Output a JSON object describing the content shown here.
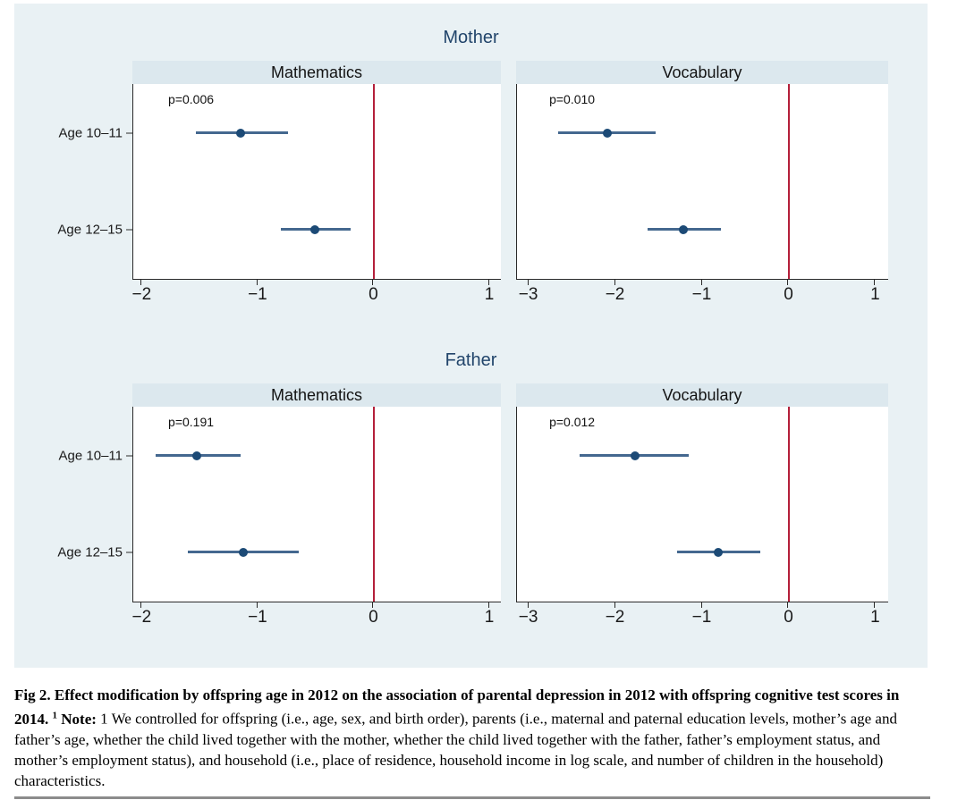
{
  "chart_data": {
    "type": "scatter",
    "subtype": "dot-and-whisker coefficient plot, 2x2 small multiples",
    "grid": false,
    "legend": "none",
    "row_labels": [
      "Age 10–11",
      "Age 12–15"
    ],
    "row_positions_pct": [
      25.2,
      74.8
    ],
    "groups": [
      {
        "title": "Mother",
        "panels": [
          {
            "title": "Mathematics",
            "p_label": "p=0.006",
            "xlim": [
              -2.08,
              1.1
            ],
            "ticks": [
              -2,
              -1,
              0,
              1
            ],
            "tick_labels": [
              "−2",
              "−1",
              "0",
              "1"
            ],
            "reference_line_x": 0,
            "rows": [
              {
                "label": "Age 10–11",
                "estimate": -1.15,
                "ci_low": -1.54,
                "ci_high": -0.74
              },
              {
                "label": "Age 12–15",
                "estimate": -0.51,
                "ci_low": -0.8,
                "ci_high": -0.2
              }
            ]
          },
          {
            "title": "Vocabulary",
            "p_label": "p=0.010",
            "xlim": [
              -3.14,
              1.15
            ],
            "ticks": [
              -3,
              -2,
              -1,
              0,
              1
            ],
            "tick_labels": [
              "−3",
              "−2",
              "−1",
              "0",
              "1"
            ],
            "reference_line_x": 0,
            "rows": [
              {
                "label": "Age 10–11",
                "estimate": -2.1,
                "ci_low": -2.66,
                "ci_high": -1.54
              },
              {
                "label": "Age 12–15",
                "estimate": -1.22,
                "ci_low": -1.63,
                "ci_high": -0.78
              }
            ]
          }
        ]
      },
      {
        "title": "Father",
        "panels": [
          {
            "title": "Mathematics",
            "p_label": "p=0.191",
            "xlim": [
              -2.08,
              1.1
            ],
            "ticks": [
              -2,
              -1,
              0,
              1
            ],
            "tick_labels": [
              "−2",
              "−1",
              "0",
              "1"
            ],
            "reference_line_x": 0,
            "rows": [
              {
                "label": "Age 10–11",
                "estimate": -1.53,
                "ci_low": -1.89,
                "ci_high": -1.15
              },
              {
                "label": "Age 12–15",
                "estimate": -1.13,
                "ci_low": -1.61,
                "ci_high": -0.65
              }
            ]
          },
          {
            "title": "Vocabulary",
            "p_label": "p=0.012",
            "xlim": [
              -3.14,
              1.15
            ],
            "ticks": [
              -3,
              -2,
              -1,
              0,
              1
            ],
            "tick_labels": [
              "−3",
              "−2",
              "−1",
              "0",
              "1"
            ],
            "reference_line_x": 0,
            "rows": [
              {
                "label": "Age 10–11",
                "estimate": -1.78,
                "ci_low": -2.42,
                "ci_high": -1.15
              },
              {
                "label": "Age 12–15",
                "estimate": -0.81,
                "ci_low": -1.29,
                "ci_high": -0.33
              }
            ]
          }
        ]
      }
    ]
  },
  "caption": {
    "title_bold": "Fig 2. Effect modification by offspring age in 2012 on the association of parental depression in 2012 with offspring cognitive test scores in 2014.",
    "superscript": "1",
    "note_label": "Note:",
    "note_text": "1 We controlled for offspring (i.e., age, sex, and birth order), parents (i.e., maternal and paternal education levels, mother’s age and father’s age, whether the child lived together with the mother, whether the child lived together with the father, father’s employment status, and mother’s employment status), and household (i.e., place of residence, household income in log scale, and number of children in the household) characteristics."
  },
  "colors": {
    "figure_background": "#e9f1f4",
    "panel_header_background": "#dce8ee",
    "plot_background": "#ffffff",
    "axis_line": "#2a2a2a",
    "estimate_dot": "#1c4a76",
    "ci_line": "#44688f",
    "reference_line": "#b41f3a",
    "group_title_text": "#22456b",
    "caption_rule": "#8c8c8c"
  }
}
